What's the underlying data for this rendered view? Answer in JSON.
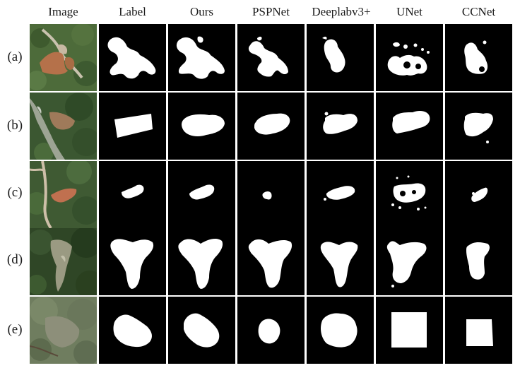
{
  "figure": {
    "columns": [
      "Image",
      "Label",
      "Ours",
      "PSPNet",
      "Deeplabv3+",
      "UNet",
      "CCNet"
    ],
    "rows": [
      "(a)",
      "(b)",
      "(c)",
      "(d)",
      "(e)"
    ]
  },
  "colors": {
    "mask_background": "#000000",
    "mask_foreground": "#ffffff",
    "figure_background": "#ffffff",
    "landslide_soil": "#b5714a",
    "vegetation": "#3f5a33"
  }
}
